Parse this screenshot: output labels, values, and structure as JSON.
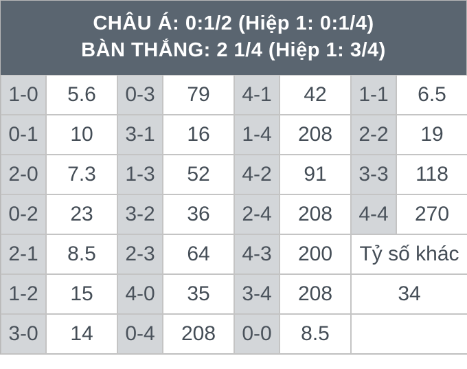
{
  "header": {
    "line1": "CHÂU Á: 0:1/2 (Hiệp 1: 0:1/4)",
    "line2": "BÀN THẮNG: 2 1/4 (Hiệp 1: 3/4)"
  },
  "colors": {
    "header_bg": "#5a6570",
    "header_text": "#ffffff",
    "score_bg": "#d3d6d9",
    "odds_bg": "#ffffff",
    "border": "#c4c4c4",
    "text": "#444d56"
  },
  "grid": {
    "columns": 8,
    "rows": 7,
    "cells": [
      [
        {
          "t": "1-0",
          "k": "score"
        },
        {
          "t": "5.6",
          "k": "odds"
        },
        {
          "t": "0-3",
          "k": "score"
        },
        {
          "t": "79",
          "k": "odds"
        },
        {
          "t": "4-1",
          "k": "score"
        },
        {
          "t": "42",
          "k": "odds"
        },
        {
          "t": "1-1",
          "k": "score"
        },
        {
          "t": "6.5",
          "k": "odds"
        }
      ],
      [
        {
          "t": "0-1",
          "k": "score"
        },
        {
          "t": "10",
          "k": "odds"
        },
        {
          "t": "3-1",
          "k": "score"
        },
        {
          "t": "16",
          "k": "odds"
        },
        {
          "t": "1-4",
          "k": "score"
        },
        {
          "t": "208",
          "k": "odds"
        },
        {
          "t": "2-2",
          "k": "score"
        },
        {
          "t": "19",
          "k": "odds"
        }
      ],
      [
        {
          "t": "2-0",
          "k": "score"
        },
        {
          "t": "7.3",
          "k": "odds"
        },
        {
          "t": "1-3",
          "k": "score"
        },
        {
          "t": "52",
          "k": "odds"
        },
        {
          "t": "4-2",
          "k": "score"
        },
        {
          "t": "91",
          "k": "odds"
        },
        {
          "t": "3-3",
          "k": "score"
        },
        {
          "t": "118",
          "k": "odds"
        }
      ],
      [
        {
          "t": "0-2",
          "k": "score"
        },
        {
          "t": "23",
          "k": "odds"
        },
        {
          "t": "3-2",
          "k": "score"
        },
        {
          "t": "36",
          "k": "odds"
        },
        {
          "t": "2-4",
          "k": "score"
        },
        {
          "t": "208",
          "k": "odds"
        },
        {
          "t": "4-4",
          "k": "score"
        },
        {
          "t": "270",
          "k": "odds"
        }
      ],
      [
        {
          "t": "2-1",
          "k": "score"
        },
        {
          "t": "8.5",
          "k": "odds"
        },
        {
          "t": "2-3",
          "k": "score"
        },
        {
          "t": "64",
          "k": "odds"
        },
        {
          "t": "4-3",
          "k": "score"
        },
        {
          "t": "200",
          "k": "odds"
        },
        {
          "t": "Tỷ số khác",
          "k": "odds",
          "span": 2
        }
      ],
      [
        {
          "t": "1-2",
          "k": "score"
        },
        {
          "t": "15",
          "k": "odds"
        },
        {
          "t": "4-0",
          "k": "score"
        },
        {
          "t": "35",
          "k": "odds"
        },
        {
          "t": "3-4",
          "k": "score"
        },
        {
          "t": "208",
          "k": "odds"
        },
        {
          "t": "34",
          "k": "odds",
          "span": 2
        }
      ],
      [
        {
          "t": "3-0",
          "k": "score"
        },
        {
          "t": "14",
          "k": "odds"
        },
        {
          "t": "0-4",
          "k": "score"
        },
        {
          "t": "208",
          "k": "odds"
        },
        {
          "t": "0-0",
          "k": "score"
        },
        {
          "t": "8.5",
          "k": "odds"
        },
        {
          "t": "",
          "k": "odds",
          "span": 2
        }
      ]
    ]
  }
}
